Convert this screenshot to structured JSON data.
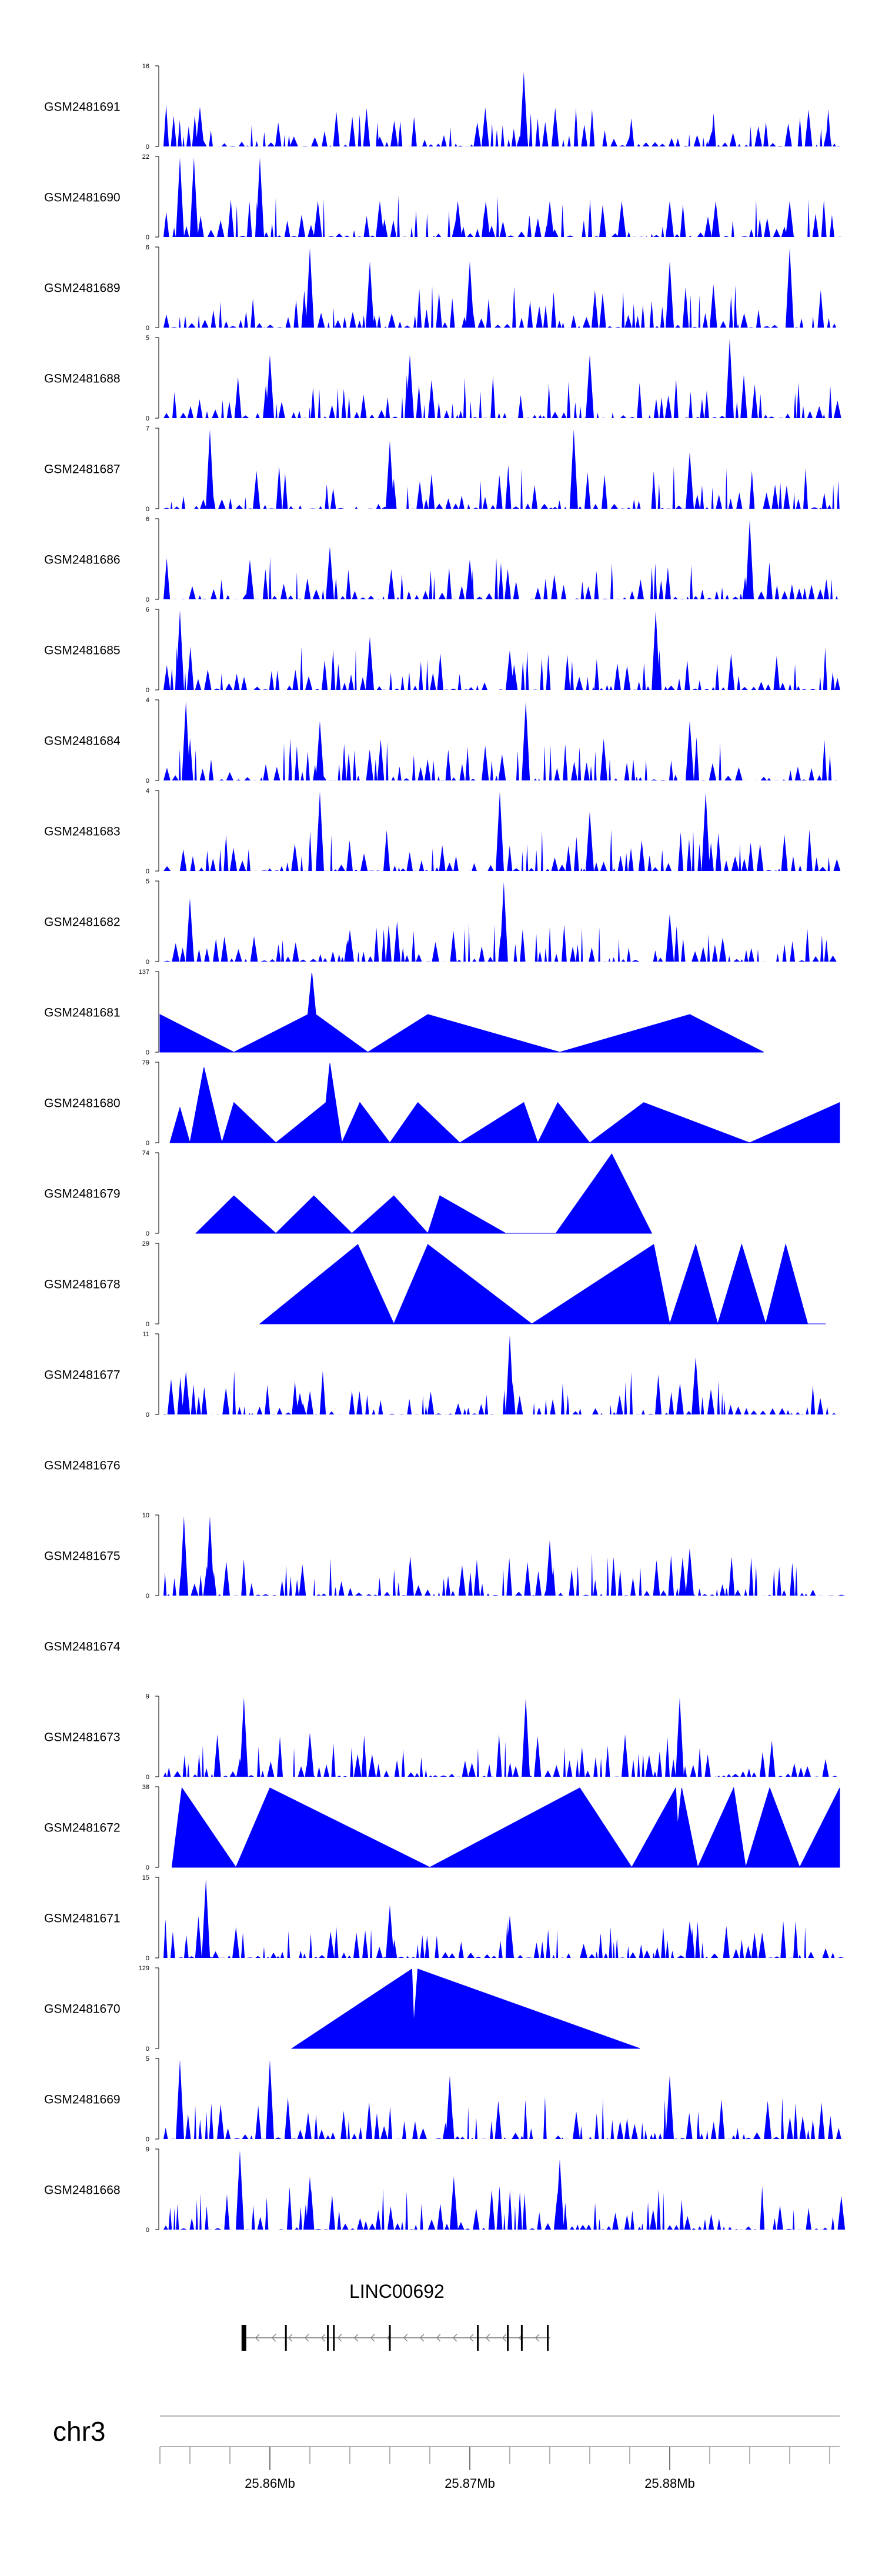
{
  "chart_data": {
    "type": "area",
    "title": "",
    "chromosome_label": "chr3",
    "gene_label": "LINC00692",
    "fill_color": "#0000ff",
    "xlabel": "",
    "xlim_mb": [
      25.8545,
      25.8885
    ],
    "x_ticks_mb": [
      25.86,
      25.87,
      25.88
    ],
    "x_tick_labels": [
      "25.86Mb",
      "25.87Mb",
      "25.88Mb"
    ],
    "gene_model": {
      "strand": "-",
      "start_mb": 25.8587,
      "end_mb": 25.874,
      "exons_mb": [
        25.8587,
        25.8608,
        25.8629,
        25.8632,
        25.866,
        25.8704,
        25.8719,
        25.8726,
        25.8739
      ]
    },
    "tracks": [
      {
        "name": "GSM2481691",
        "ymax": 16,
        "peaks": [
          [
            25.8565,
            8
          ],
          [
            25.8727,
            15
          ],
          [
            25.8612,
            2
          ],
          [
            25.8655,
            2
          ],
          [
            25.8821,
            3
          ],
          [
            25.8879,
            4
          ],
          [
            25.878,
            2
          ]
        ],
        "style": "dense"
      },
      {
        "name": "GSM2481690",
        "ymax": 22,
        "peaks": [
          [
            25.8555,
            22
          ],
          [
            25.8562,
            22
          ],
          [
            25.8595,
            22
          ],
          [
            25.8624,
            10
          ],
          [
            25.8655,
            10
          ],
          [
            25.8694,
            10
          ],
          [
            25.8708,
            10
          ],
          [
            25.874,
            10
          ],
          [
            25.8776,
            10
          ],
          [
            25.88,
            10
          ],
          [
            25.8823,
            10
          ],
          [
            25.886,
            10
          ]
        ],
        "style": "sparse"
      },
      {
        "name": "GSM2481689",
        "ymax": 6,
        "peaks": [
          [
            25.862,
            6
          ],
          [
            25.886,
            6
          ],
          [
            25.87,
            5
          ],
          [
            25.88,
            5
          ],
          [
            25.865,
            5
          ]
        ],
        "style": "dense"
      },
      {
        "name": "GSM2481688",
        "ymax": 5,
        "peaks": [
          [
            25.883,
            5
          ],
          [
            25.867,
            4
          ],
          [
            25.876,
            4
          ],
          [
            25.86,
            4
          ]
        ],
        "style": "dense"
      },
      {
        "name": "GSM2481687",
        "ymax": 7,
        "peaks": [
          [
            25.857,
            7
          ],
          [
            25.8752,
            7
          ],
          [
            25.866,
            6
          ],
          [
            25.881,
            5
          ]
        ],
        "style": "dense"
      },
      {
        "name": "GSM2481686",
        "ymax": 6,
        "peaks": [
          [
            25.884,
            6
          ],
          [
            25.863,
            4
          ],
          [
            25.87,
            3
          ],
          [
            25.859,
            3
          ]
        ],
        "style": "dense"
      },
      {
        "name": "GSM2481685",
        "ymax": 6,
        "peaks": [
          [
            25.8793,
            6
          ],
          [
            25.8555,
            6
          ],
          [
            25.865,
            4
          ],
          [
            25.872,
            3
          ]
        ],
        "style": "dense"
      },
      {
        "name": "GSM2481684",
        "ymax": 4,
        "peaks": [
          [
            25.8558,
            4
          ],
          [
            25.8728,
            4
          ],
          [
            25.8625,
            3
          ],
          [
            25.881,
            3
          ]
        ],
        "style": "dense"
      },
      {
        "name": "GSM2481683",
        "ymax": 4,
        "peaks": [
          [
            25.8625,
            4
          ],
          [
            25.8715,
            4
          ],
          [
            25.8818,
            4
          ],
          [
            25.876,
            3
          ]
        ],
        "style": "dense"
      },
      {
        "name": "GSM2481682",
        "ymax": 5,
        "peaks": [
          [
            25.8717,
            5
          ],
          [
            25.856,
            4
          ],
          [
            25.88,
            3
          ],
          [
            25.864,
            2
          ]
        ],
        "style": "dense"
      },
      {
        "name": "GSM2481681",
        "ymax": 137,
        "peaks": [
          [
            25.8545,
            65
          ],
          [
            25.8582,
            0
          ],
          [
            25.8619,
            65
          ],
          [
            25.8621,
            137
          ],
          [
            25.8623,
            65
          ],
          [
            25.8649,
            0
          ],
          [
            25.8679,
            65
          ],
          [
            25.8745,
            0
          ],
          [
            25.881,
            65
          ],
          [
            25.8847,
            0
          ]
        ],
        "style": "polyline"
      },
      {
        "name": "GSM2481680",
        "ymax": 79,
        "peaks": [
          [
            25.855,
            0
          ],
          [
            25.8555,
            35
          ],
          [
            25.856,
            0
          ],
          [
            25.8567,
            75
          ],
          [
            25.8576,
            0
          ],
          [
            25.8582,
            40
          ],
          [
            25.8603,
            0
          ],
          [
            25.8628,
            40
          ],
          [
            25.863,
            79
          ],
          [
            25.8636,
            0
          ],
          [
            25.8645,
            40
          ],
          [
            25.866,
            0
          ],
          [
            25.8674,
            40
          ],
          [
            25.8695,
            0
          ],
          [
            25.8727,
            40
          ],
          [
            25.8734,
            0
          ],
          [
            25.8744,
            40
          ],
          [
            25.876,
            0
          ],
          [
            25.8787,
            40
          ],
          [
            25.884,
            0
          ],
          [
            25.8885,
            40
          ]
        ],
        "style": "polyline"
      },
      {
        "name": "GSM2481679",
        "ymax": 74,
        "peaks": [
          [
            25.8563,
            0
          ],
          [
            25.8582,
            35
          ],
          [
            25.8603,
            0
          ],
          [
            25.8622,
            35
          ],
          [
            25.8641,
            0
          ],
          [
            25.8662,
            35
          ],
          [
            25.8679,
            0
          ],
          [
            25.8685,
            35
          ],
          [
            25.8718,
            0
          ],
          [
            25.8743,
            0
          ],
          [
            25.8771,
            74
          ],
          [
            25.8791,
            0
          ]
        ],
        "style": "polyline"
      },
      {
        "name": "GSM2481678",
        "ymax": 29,
        "peaks": [
          [
            25.8595,
            0
          ],
          [
            25.8644,
            29
          ],
          [
            25.8662,
            0
          ],
          [
            25.8679,
            29
          ],
          [
            25.8731,
            0
          ],
          [
            25.8792,
            29
          ],
          [
            25.88,
            0
          ],
          [
            25.8813,
            29
          ],
          [
            25.8824,
            0
          ],
          [
            25.8836,
            29
          ],
          [
            25.8848,
            0
          ],
          [
            25.8858,
            29
          ],
          [
            25.8869,
            0
          ],
          [
            25.8878,
            0
          ]
        ],
        "style": "polyline"
      },
      {
        "name": "GSM2481677",
        "ymax": 11,
        "peaks": [
          [
            25.872,
            11
          ],
          [
            25.8813,
            8
          ],
          [
            25.8558,
            6
          ],
          [
            25.8615,
            3
          ]
        ],
        "style": "dense"
      },
      {
        "name": "GSM2481676",
        "ymax": null,
        "peaks": [],
        "style": "empty"
      },
      {
        "name": "GSM2481675",
        "ymax": 10,
        "peaks": [
          [
            25.8557,
            10
          ],
          [
            25.857,
            10
          ],
          [
            25.874,
            7
          ],
          [
            25.881,
            6
          ]
        ],
        "style": "dense"
      },
      {
        "name": "GSM2481674",
        "ymax": null,
        "peaks": [],
        "style": "empty"
      },
      {
        "name": "GSM2481673",
        "ymax": 9,
        "peaks": [
          [
            25.8587,
            9
          ],
          [
            25.8728,
            9
          ],
          [
            25.8805,
            9
          ],
          [
            25.862,
            5
          ]
        ],
        "style": "dense"
      },
      {
        "name": "GSM2481672",
        "ymax": 38,
        "peaks": [
          [
            25.8551,
            0
          ],
          [
            25.8556,
            38
          ],
          [
            25.8583,
            0
          ],
          [
            25.86,
            38
          ],
          [
            25.868,
            0
          ],
          [
            25.8755,
            38
          ],
          [
            25.8781,
            0
          ],
          [
            25.8803,
            38
          ],
          [
            25.8804,
            20
          ],
          [
            25.8806,
            38
          ],
          [
            25.8814,
            0
          ],
          [
            25.8832,
            38
          ],
          [
            25.8838,
            0
          ],
          [
            25.885,
            38
          ],
          [
            25.8865,
            0
          ],
          [
            25.8885,
            38
          ]
        ],
        "style": "polyline"
      },
      {
        "name": "GSM2481671",
        "ymax": 15,
        "peaks": [
          [
            25.8568,
            15
          ],
          [
            25.866,
            10
          ],
          [
            25.872,
            8
          ],
          [
            25.881,
            7
          ]
        ],
        "style": "dense"
      },
      {
        "name": "GSM2481670",
        "ymax": 129,
        "peaks": [
          [
            25.8611,
            0
          ],
          [
            25.8671,
            129
          ],
          [
            25.8672,
            40
          ],
          [
            25.8674,
            129
          ],
          [
            25.8785,
            0
          ]
        ],
        "style": "polyline"
      },
      {
        "name": "GSM2481669",
        "ymax": 5,
        "peaks": [
          [
            25.8555,
            5
          ],
          [
            25.86,
            5
          ],
          [
            25.869,
            4
          ],
          [
            25.88,
            4
          ]
        ],
        "style": "dense"
      },
      {
        "name": "GSM2481668",
        "ymax": 9,
        "peaks": [
          [
            25.8585,
            9
          ],
          [
            25.8745,
            8
          ],
          [
            25.8692,
            6
          ],
          [
            25.862,
            6
          ]
        ],
        "style": "dense"
      }
    ]
  }
}
